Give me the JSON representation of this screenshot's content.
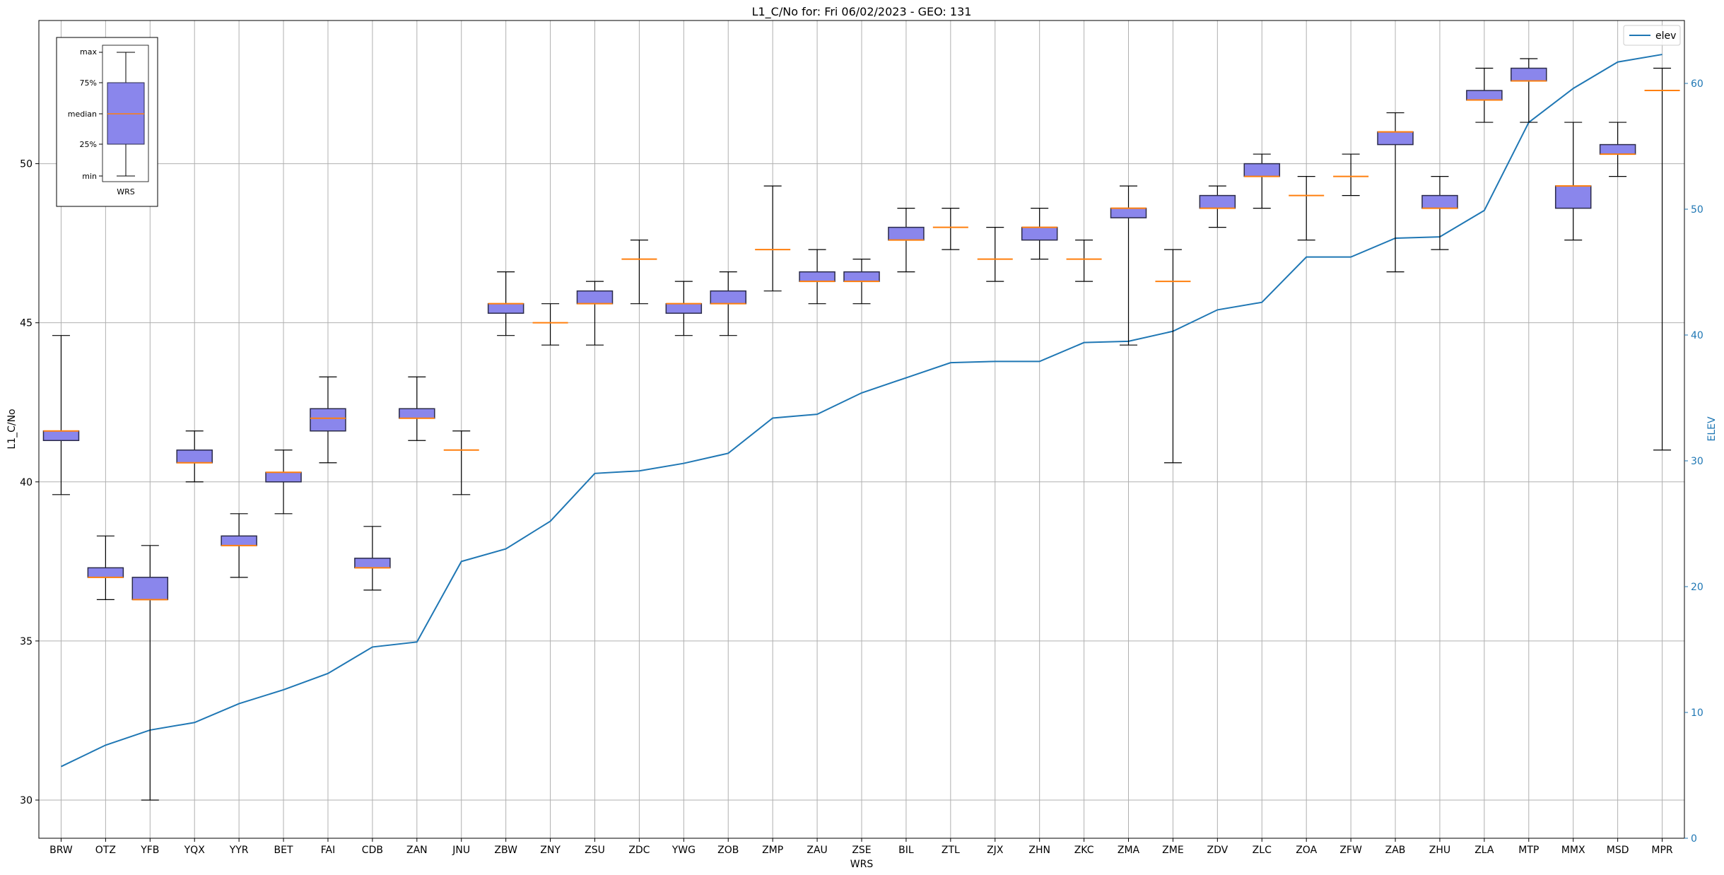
{
  "chart_data": {
    "type": "box",
    "title": "L1_C/No for: Fri 06/02/2023 - GEO: 131",
    "xlabel": "WRS",
    "ylabel": "L1_C/No",
    "y2label": "ELEV",
    "ylim": [
      28.8,
      54.5
    ],
    "y2lim": [
      0,
      65
    ],
    "grid": true,
    "yticks": [
      30,
      35,
      40,
      45,
      50
    ],
    "y2ticks": [
      0,
      10,
      20,
      30,
      40,
      50,
      60
    ],
    "legend": {
      "position": "top-right",
      "entries": [
        "elev"
      ]
    },
    "colors": {
      "box_fill": "#8a86ec",
      "box_edge": "#2b2b4a",
      "median": "#ff7f0e",
      "whisker": "#000000",
      "elev_line": "#1f77b4",
      "grid": "#b0b0b0"
    },
    "categories": [
      "BRW",
      "OTZ",
      "YFB",
      "YQX",
      "YYR",
      "BET",
      "FAI",
      "CDB",
      "ZAN",
      "JNU",
      "ZBW",
      "ZNY",
      "ZSU",
      "ZDC",
      "YWG",
      "ZOB",
      "ZMP",
      "ZAU",
      "ZSE",
      "BIL",
      "ZTL",
      "ZJX",
      "ZHN",
      "ZKC",
      "ZMA",
      "ZME",
      "ZDV",
      "ZLC",
      "ZOA",
      "ZFW",
      "ZAB",
      "ZHU",
      "ZLA",
      "MTP",
      "MMX",
      "MSD",
      "MPR"
    ],
    "boxes": [
      {
        "min": 39.6,
        "q1": 41.3,
        "median": 41.6,
        "q3": 41.6,
        "max": 44.6
      },
      {
        "min": 36.3,
        "q1": 37.0,
        "median": 37.0,
        "q3": 37.3,
        "max": 38.3
      },
      {
        "min": 30.0,
        "q1": 36.3,
        "median": 36.3,
        "q3": 37.0,
        "max": 38.0
      },
      {
        "min": 40.0,
        "q1": 40.6,
        "median": 40.6,
        "q3": 41.0,
        "max": 41.6
      },
      {
        "min": 37.0,
        "q1": 38.0,
        "median": 38.0,
        "q3": 38.3,
        "max": 39.0
      },
      {
        "min": 39.0,
        "q1": 40.0,
        "median": 40.3,
        "q3": 40.3,
        "max": 41.0
      },
      {
        "min": 40.6,
        "q1": 41.6,
        "median": 42.0,
        "q3": 42.3,
        "max": 43.3
      },
      {
        "min": 36.6,
        "q1": 37.3,
        "median": 37.3,
        "q3": 37.6,
        "max": 38.6
      },
      {
        "min": 41.3,
        "q1": 42.0,
        "median": 42.0,
        "q3": 42.3,
        "max": 43.3
      },
      {
        "min": 39.6,
        "q1": 41.0,
        "median": 41.0,
        "q3": 41.0,
        "max": 41.6
      },
      {
        "min": 44.6,
        "q1": 45.3,
        "median": 45.6,
        "q3": 45.6,
        "max": 46.6
      },
      {
        "min": 44.3,
        "q1": 45.0,
        "median": 45.0,
        "q3": 45.0,
        "max": 45.6
      },
      {
        "min": 44.3,
        "q1": 45.6,
        "median": 45.6,
        "q3": 46.0,
        "max": 46.3
      },
      {
        "min": 45.6,
        "q1": 47.0,
        "median": 47.0,
        "q3": 47.0,
        "max": 47.6
      },
      {
        "min": 44.6,
        "q1": 45.3,
        "median": 45.6,
        "q3": 45.6,
        "max": 46.3
      },
      {
        "min": 44.6,
        "q1": 45.6,
        "median": 45.6,
        "q3": 46.0,
        "max": 46.6
      },
      {
        "min": 46.0,
        "q1": 47.3,
        "median": 47.3,
        "q3": 47.3,
        "max": 49.3
      },
      {
        "min": 45.6,
        "q1": 46.3,
        "median": 46.3,
        "q3": 46.6,
        "max": 47.3
      },
      {
        "min": 45.6,
        "q1": 46.3,
        "median": 46.3,
        "q3": 46.6,
        "max": 47.0
      },
      {
        "min": 46.6,
        "q1": 47.6,
        "median": 47.6,
        "q3": 48.0,
        "max": 48.6
      },
      {
        "min": 47.3,
        "q1": 48.0,
        "median": 48.0,
        "q3": 48.0,
        "max": 48.6
      },
      {
        "min": 46.3,
        "q1": 47.0,
        "median": 47.0,
        "q3": 47.0,
        "max": 48.0
      },
      {
        "min": 47.0,
        "q1": 47.6,
        "median": 48.0,
        "q3": 48.0,
        "max": 48.6
      },
      {
        "min": 46.3,
        "q1": 47.0,
        "median": 47.0,
        "q3": 47.0,
        "max": 47.6
      },
      {
        "min": 44.3,
        "q1": 48.3,
        "median": 48.6,
        "q3": 48.6,
        "max": 49.3
      },
      {
        "min": 40.6,
        "q1": 46.3,
        "median": 46.3,
        "q3": 46.3,
        "max": 47.3
      },
      {
        "min": 48.0,
        "q1": 48.6,
        "median": 48.6,
        "q3": 49.0,
        "max": 49.3
      },
      {
        "min": 48.6,
        "q1": 49.6,
        "median": 49.6,
        "q3": 50.0,
        "max": 50.3
      },
      {
        "min": 47.6,
        "q1": 49.0,
        "median": 49.0,
        "q3": 49.0,
        "max": 49.6
      },
      {
        "min": 49.0,
        "q1": 49.6,
        "median": 49.6,
        "q3": 49.6,
        "max": 50.3
      },
      {
        "min": 46.6,
        "q1": 50.6,
        "median": 51.0,
        "q3": 51.0,
        "max": 51.6
      },
      {
        "min": 47.3,
        "q1": 48.6,
        "median": 48.6,
        "q3": 49.0,
        "max": 49.6
      },
      {
        "min": 51.3,
        "q1": 52.0,
        "median": 52.0,
        "q3": 52.3,
        "max": 53.0
      },
      {
        "min": 51.3,
        "q1": 52.6,
        "median": 52.6,
        "q3": 53.0,
        "max": 53.3
      },
      {
        "min": 47.6,
        "q1": 48.6,
        "median": 49.3,
        "q3": 49.3,
        "max": 51.3
      },
      {
        "min": 49.6,
        "q1": 50.3,
        "median": 50.3,
        "q3": 50.6,
        "max": 51.3
      },
      {
        "min": 41.0,
        "q1": 52.3,
        "median": 52.3,
        "q3": 52.3,
        "max": 53.0
      }
    ],
    "series": [
      {
        "name": "elev",
        "values": [
          5.7,
          7.4,
          8.6,
          9.2,
          10.7,
          11.8,
          13.1,
          15.2,
          15.6,
          22.0,
          23.0,
          25.2,
          29.0,
          29.2,
          29.8,
          30.6,
          33.4,
          33.7,
          35.4,
          36.6,
          37.8,
          37.9,
          37.9,
          39.4,
          39.5,
          40.3,
          42.0,
          42.6,
          46.2,
          46.2,
          47.7,
          47.8,
          49.9,
          56.9,
          59.6,
          61.7,
          62.3
        ]
      }
    ],
    "inset": {
      "labels": [
        "max",
        "75%",
        "median",
        "25%",
        "min"
      ],
      "xlabel": "WRS"
    }
  }
}
